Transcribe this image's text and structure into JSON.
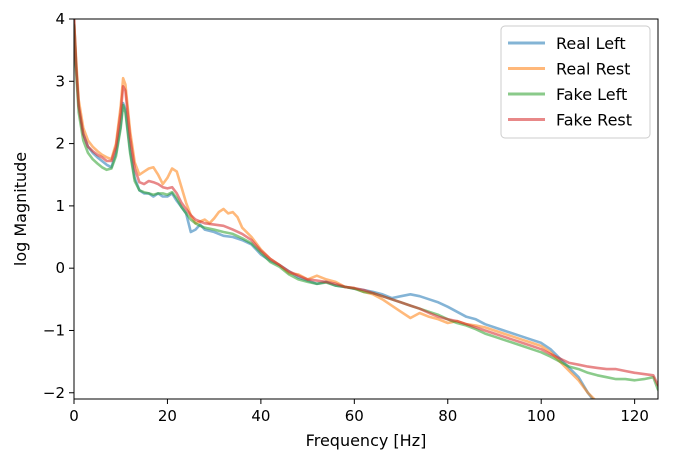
{
  "chart_data": {
    "type": "line",
    "title": "",
    "xlabel": "Frequency [Hz]",
    "ylabel": "log Magnitude",
    "xlim": [
      0,
      125
    ],
    "ylim": [
      -2.1,
      4
    ],
    "xticks": [
      0,
      20,
      40,
      60,
      80,
      100,
      120
    ],
    "yticks": [
      -2,
      -1,
      0,
      1,
      2,
      3,
      4
    ],
    "grid": false,
    "legend_position": "top-right",
    "series": [
      {
        "name": "Real Left",
        "color": "#1f77b4",
        "points": [
          [
            0,
            4.0
          ],
          [
            0.5,
            3.2
          ],
          [
            1,
            2.6
          ],
          [
            2,
            2.15
          ],
          [
            3,
            1.95
          ],
          [
            4,
            1.85
          ],
          [
            5,
            1.78
          ],
          [
            6,
            1.72
          ],
          [
            7,
            1.66
          ],
          [
            8,
            1.62
          ],
          [
            9,
            1.85
          ],
          [
            10,
            2.3
          ],
          [
            10.5,
            2.65
          ],
          [
            11,
            2.55
          ],
          [
            12,
            1.9
          ],
          [
            13,
            1.45
          ],
          [
            14,
            1.25
          ],
          [
            15,
            1.2
          ],
          [
            16,
            1.2
          ],
          [
            17,
            1.15
          ],
          [
            18,
            1.2
          ],
          [
            19,
            1.15
          ],
          [
            20,
            1.15
          ],
          [
            21,
            1.2
          ],
          [
            22,
            1.08
          ],
          [
            23,
            0.98
          ],
          [
            24,
            0.88
          ],
          [
            25,
            0.58
          ],
          [
            26,
            0.62
          ],
          [
            27,
            0.7
          ],
          [
            28,
            0.62
          ],
          [
            30,
            0.58
          ],
          [
            32,
            0.52
          ],
          [
            34,
            0.5
          ],
          [
            36,
            0.45
          ],
          [
            38,
            0.38
          ],
          [
            40,
            0.22
          ],
          [
            42,
            0.12
          ],
          [
            44,
            0.05
          ],
          [
            46,
            -0.05
          ],
          [
            48,
            -0.15
          ],
          [
            50,
            -0.2
          ],
          [
            52,
            -0.25
          ],
          [
            54,
            -0.22
          ],
          [
            56,
            -0.28
          ],
          [
            58,
            -0.3
          ],
          [
            60,
            -0.33
          ],
          [
            62,
            -0.35
          ],
          [
            64,
            -0.38
          ],
          [
            66,
            -0.42
          ],
          [
            68,
            -0.48
          ],
          [
            70,
            -0.45
          ],
          [
            72,
            -0.42
          ],
          [
            74,
            -0.45
          ],
          [
            76,
            -0.5
          ],
          [
            78,
            -0.55
          ],
          [
            80,
            -0.62
          ],
          [
            82,
            -0.7
          ],
          [
            84,
            -0.78
          ],
          [
            86,
            -0.82
          ],
          [
            88,
            -0.9
          ],
          [
            90,
            -0.95
          ],
          [
            92,
            -1.0
          ],
          [
            94,
            -1.05
          ],
          [
            96,
            -1.1
          ],
          [
            98,
            -1.15
          ],
          [
            100,
            -1.2
          ],
          [
            102,
            -1.3
          ],
          [
            104,
            -1.45
          ],
          [
            106,
            -1.6
          ],
          [
            108,
            -1.75
          ],
          [
            110,
            -2.0
          ],
          [
            111.5,
            -2.15
          ]
        ]
      },
      {
        "name": "Real Rest",
        "color": "#ff7f0e",
        "points": [
          [
            0,
            4.0
          ],
          [
            0.5,
            3.3
          ],
          [
            1,
            2.7
          ],
          [
            2,
            2.25
          ],
          [
            3,
            2.05
          ],
          [
            4,
            1.95
          ],
          [
            5,
            1.88
          ],
          [
            6,
            1.82
          ],
          [
            7,
            1.78
          ],
          [
            8,
            1.75
          ],
          [
            9,
            2.0
          ],
          [
            10,
            2.6
          ],
          [
            10.5,
            3.05
          ],
          [
            11,
            2.95
          ],
          [
            12,
            2.2
          ],
          [
            13,
            1.7
          ],
          [
            14,
            1.5
          ],
          [
            15,
            1.55
          ],
          [
            16,
            1.6
          ],
          [
            17,
            1.62
          ],
          [
            18,
            1.5
          ],
          [
            19,
            1.35
          ],
          [
            20,
            1.45
          ],
          [
            21,
            1.6
          ],
          [
            22,
            1.55
          ],
          [
            23,
            1.3
          ],
          [
            24,
            1.05
          ],
          [
            25,
            0.85
          ],
          [
            26,
            0.72
          ],
          [
            27,
            0.75
          ],
          [
            28,
            0.78
          ],
          [
            29,
            0.72
          ],
          [
            30,
            0.8
          ],
          [
            31,
            0.9
          ],
          [
            32,
            0.95
          ],
          [
            33,
            0.88
          ],
          [
            34,
            0.9
          ],
          [
            35,
            0.82
          ],
          [
            36,
            0.65
          ],
          [
            38,
            0.5
          ],
          [
            40,
            0.3
          ],
          [
            42,
            0.15
          ],
          [
            44,
            0.05
          ],
          [
            46,
            -0.08
          ],
          [
            48,
            -0.1
          ],
          [
            50,
            -0.18
          ],
          [
            52,
            -0.12
          ],
          [
            54,
            -0.18
          ],
          [
            56,
            -0.22
          ],
          [
            58,
            -0.3
          ],
          [
            60,
            -0.32
          ],
          [
            62,
            -0.38
          ],
          [
            64,
            -0.42
          ],
          [
            66,
            -0.5
          ],
          [
            68,
            -0.6
          ],
          [
            70,
            -0.7
          ],
          [
            72,
            -0.8
          ],
          [
            74,
            -0.72
          ],
          [
            76,
            -0.78
          ],
          [
            78,
            -0.82
          ],
          [
            80,
            -0.88
          ],
          [
            82,
            -0.85
          ],
          [
            84,
            -0.9
          ],
          [
            86,
            -0.92
          ],
          [
            88,
            -0.95
          ],
          [
            90,
            -1.0
          ],
          [
            92,
            -1.05
          ],
          [
            94,
            -1.1
          ],
          [
            96,
            -1.15
          ],
          [
            98,
            -1.2
          ],
          [
            100,
            -1.25
          ],
          [
            102,
            -1.35
          ],
          [
            104,
            -1.5
          ],
          [
            106,
            -1.65
          ],
          [
            108,
            -1.8
          ],
          [
            110,
            -2.0
          ],
          [
            112,
            -2.15
          ]
        ]
      },
      {
        "name": "Fake Left",
        "color": "#2ca02c",
        "points": [
          [
            0,
            3.9
          ],
          [
            0.5,
            3.1
          ],
          [
            1,
            2.5
          ],
          [
            2,
            2.05
          ],
          [
            3,
            1.85
          ],
          [
            4,
            1.75
          ],
          [
            5,
            1.68
          ],
          [
            6,
            1.62
          ],
          [
            7,
            1.58
          ],
          [
            8,
            1.6
          ],
          [
            9,
            1.8
          ],
          [
            10,
            2.25
          ],
          [
            10.5,
            2.62
          ],
          [
            11,
            2.5
          ],
          [
            12,
            1.85
          ],
          [
            13,
            1.4
          ],
          [
            14,
            1.25
          ],
          [
            15,
            1.22
          ],
          [
            16,
            1.2
          ],
          [
            17,
            1.18
          ],
          [
            18,
            1.2
          ],
          [
            19,
            1.2
          ],
          [
            20,
            1.18
          ],
          [
            21,
            1.22
          ],
          [
            22,
            1.12
          ],
          [
            23,
            0.98
          ],
          [
            24,
            0.88
          ],
          [
            25,
            0.78
          ],
          [
            26,
            0.72
          ],
          [
            27,
            0.68
          ],
          [
            28,
            0.65
          ],
          [
            30,
            0.62
          ],
          [
            32,
            0.58
          ],
          [
            34,
            0.55
          ],
          [
            36,
            0.48
          ],
          [
            38,
            0.4
          ],
          [
            40,
            0.25
          ],
          [
            42,
            0.1
          ],
          [
            44,
            0.02
          ],
          [
            46,
            -0.1
          ],
          [
            48,
            -0.18
          ],
          [
            50,
            -0.22
          ],
          [
            52,
            -0.25
          ],
          [
            54,
            -0.23
          ],
          [
            56,
            -0.28
          ],
          [
            58,
            -0.3
          ],
          [
            60,
            -0.33
          ],
          [
            62,
            -0.38
          ],
          [
            64,
            -0.4
          ],
          [
            66,
            -0.45
          ],
          [
            68,
            -0.5
          ],
          [
            70,
            -0.55
          ],
          [
            72,
            -0.6
          ],
          [
            74,
            -0.65
          ],
          [
            76,
            -0.7
          ],
          [
            78,
            -0.75
          ],
          [
            80,
            -0.82
          ],
          [
            82,
            -0.88
          ],
          [
            84,
            -0.92
          ],
          [
            86,
            -0.98
          ],
          [
            88,
            -1.05
          ],
          [
            90,
            -1.1
          ],
          [
            92,
            -1.15
          ],
          [
            94,
            -1.2
          ],
          [
            96,
            -1.25
          ],
          [
            98,
            -1.3
          ],
          [
            100,
            -1.35
          ],
          [
            102,
            -1.42
          ],
          [
            104,
            -1.5
          ],
          [
            106,
            -1.58
          ],
          [
            108,
            -1.62
          ],
          [
            110,
            -1.68
          ],
          [
            112,
            -1.72
          ],
          [
            114,
            -1.75
          ],
          [
            116,
            -1.78
          ],
          [
            118,
            -1.78
          ],
          [
            120,
            -1.8
          ],
          [
            122,
            -1.78
          ],
          [
            124,
            -1.75
          ],
          [
            125,
            -1.95
          ]
        ]
      },
      {
        "name": "Fake Rest",
        "color": "#d62728",
        "points": [
          [
            0,
            4.0
          ],
          [
            0.5,
            3.2
          ],
          [
            1,
            2.6
          ],
          [
            2,
            2.15
          ],
          [
            3,
            1.95
          ],
          [
            4,
            1.88
          ],
          [
            5,
            1.82
          ],
          [
            6,
            1.78
          ],
          [
            7,
            1.72
          ],
          [
            8,
            1.72
          ],
          [
            9,
            1.95
          ],
          [
            10,
            2.5
          ],
          [
            10.5,
            2.92
          ],
          [
            11,
            2.85
          ],
          [
            12,
            2.1
          ],
          [
            13,
            1.6
          ],
          [
            14,
            1.38
          ],
          [
            15,
            1.35
          ],
          [
            16,
            1.4
          ],
          [
            17,
            1.38
          ],
          [
            18,
            1.35
          ],
          [
            19,
            1.3
          ],
          [
            20,
            1.28
          ],
          [
            21,
            1.3
          ],
          [
            22,
            1.2
          ],
          [
            23,
            1.05
          ],
          [
            24,
            0.95
          ],
          [
            25,
            0.85
          ],
          [
            26,
            0.78
          ],
          [
            27,
            0.75
          ],
          [
            28,
            0.72
          ],
          [
            30,
            0.7
          ],
          [
            32,
            0.68
          ],
          [
            34,
            0.62
          ],
          [
            36,
            0.55
          ],
          [
            38,
            0.45
          ],
          [
            40,
            0.28
          ],
          [
            42,
            0.15
          ],
          [
            44,
            0.05
          ],
          [
            46,
            -0.05
          ],
          [
            48,
            -0.12
          ],
          [
            50,
            -0.18
          ],
          [
            52,
            -0.2
          ],
          [
            54,
            -0.22
          ],
          [
            56,
            -0.25
          ],
          [
            58,
            -0.3
          ],
          [
            60,
            -0.32
          ],
          [
            62,
            -0.35
          ],
          [
            64,
            -0.4
          ],
          [
            66,
            -0.45
          ],
          [
            68,
            -0.5
          ],
          [
            70,
            -0.55
          ],
          [
            72,
            -0.6
          ],
          [
            74,
            -0.65
          ],
          [
            76,
            -0.72
          ],
          [
            78,
            -0.78
          ],
          [
            80,
            -0.82
          ],
          [
            82,
            -0.85
          ],
          [
            84,
            -0.9
          ],
          [
            86,
            -0.95
          ],
          [
            88,
            -1.0
          ],
          [
            90,
            -1.05
          ],
          [
            92,
            -1.1
          ],
          [
            94,
            -1.15
          ],
          [
            96,
            -1.2
          ],
          [
            98,
            -1.25
          ],
          [
            100,
            -1.3
          ],
          [
            102,
            -1.38
          ],
          [
            104,
            -1.45
          ],
          [
            106,
            -1.52
          ],
          [
            108,
            -1.55
          ],
          [
            110,
            -1.58
          ],
          [
            112,
            -1.6
          ],
          [
            114,
            -1.62
          ],
          [
            116,
            -1.62
          ],
          [
            118,
            -1.65
          ],
          [
            120,
            -1.68
          ],
          [
            122,
            -1.7
          ],
          [
            124,
            -1.72
          ],
          [
            125,
            -1.88
          ]
        ]
      }
    ]
  }
}
